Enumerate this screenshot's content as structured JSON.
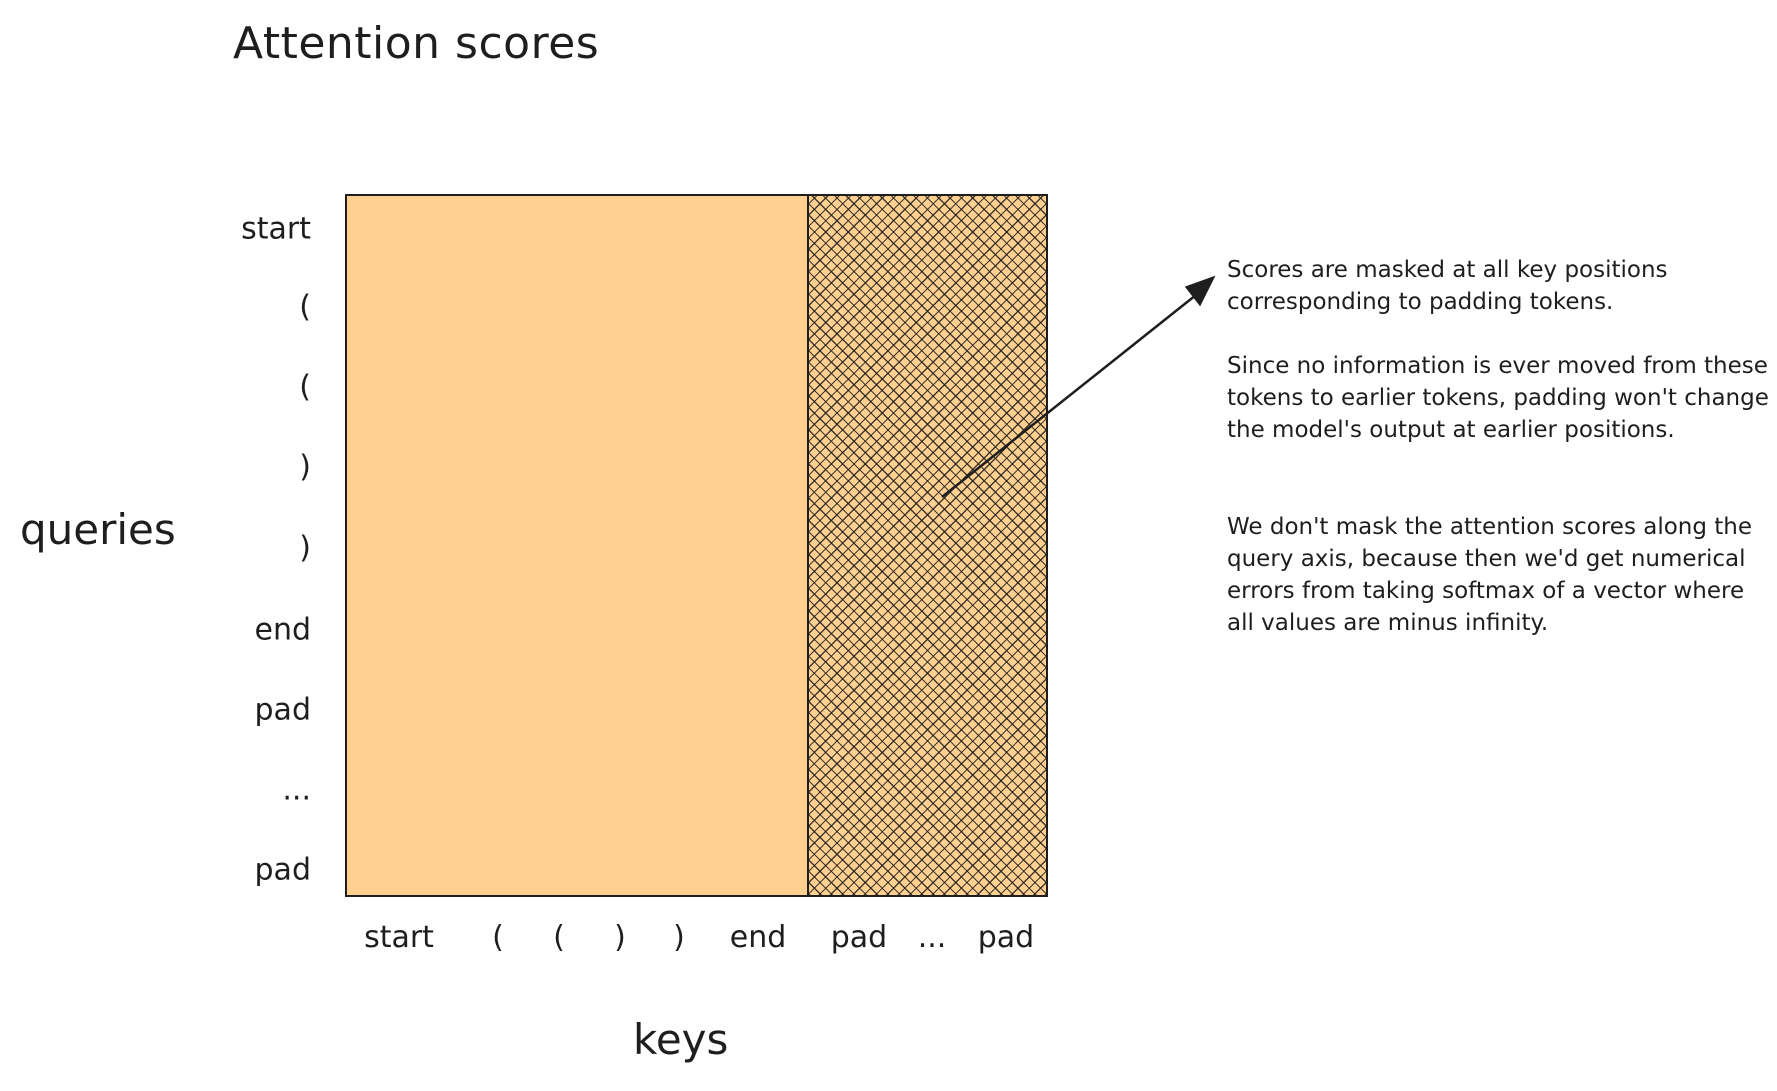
{
  "title": "Attention scores",
  "axes": {
    "queries_label": "queries",
    "keys_label": "keys"
  },
  "query_tokens": [
    "start",
    "(",
    "(",
    ")",
    ")",
    "end",
    "pad",
    "...",
    "pad"
  ],
  "key_tokens": [
    "start",
    "(",
    "(",
    ")",
    ")",
    "end",
    "pad",
    "...",
    "pad"
  ],
  "annotation": {
    "paragraph_1": "Scores are masked at all key positions corresponding to padding tokens.",
    "paragraph_2": "Since no information is ever moved from these tokens to earlier tokens, padding won't change the model's output at earlier positions.",
    "paragraph_3": "We don't mask the attention scores along the query axis, because then we'd get numerical errors from taking softmax of a vector where all values are minus infinity."
  },
  "colors": {
    "score_fill": "#ffd08f",
    "ink": "#1e1e1e",
    "background": "#ffffff"
  }
}
